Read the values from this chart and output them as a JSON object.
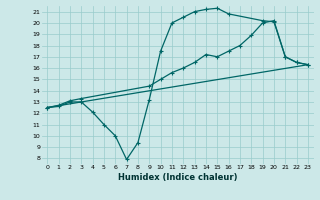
{
  "xlabel": "Humidex (Indice chaleur)",
  "bg_color": "#cce8e8",
  "line_color": "#006666",
  "xlim": [
    -0.5,
    23.5
  ],
  "ylim": [
    7.5,
    21.5
  ],
  "xticks": [
    0,
    1,
    2,
    3,
    4,
    5,
    6,
    7,
    8,
    9,
    10,
    11,
    12,
    13,
    14,
    15,
    16,
    17,
    18,
    19,
    20,
    21,
    22,
    23
  ],
  "yticks": [
    8,
    9,
    10,
    11,
    12,
    13,
    14,
    15,
    16,
    17,
    18,
    19,
    20,
    21
  ],
  "line1_x": [
    0,
    1,
    2,
    3,
    4,
    5,
    6,
    7,
    8,
    9,
    10,
    11,
    12,
    13,
    14,
    15,
    16,
    19,
    20,
    21,
    22,
    23
  ],
  "line1_y": [
    12.5,
    12.6,
    13.0,
    13.0,
    12.1,
    11.0,
    10.0,
    7.9,
    9.4,
    13.2,
    17.5,
    20.0,
    20.5,
    21.0,
    21.2,
    21.3,
    20.8,
    20.2,
    20.1,
    17.0,
    16.5,
    16.3
  ],
  "line2_x": [
    0,
    1,
    2,
    3,
    9,
    10,
    11,
    12,
    13,
    14,
    15,
    16,
    17,
    18,
    19,
    20,
    21,
    22,
    23
  ],
  "line2_y": [
    12.5,
    12.7,
    13.1,
    13.3,
    14.4,
    15.0,
    15.6,
    16.0,
    16.5,
    17.2,
    17.0,
    17.5,
    18.0,
    18.9,
    20.0,
    20.2,
    17.0,
    16.5,
    16.3
  ],
  "line3_x": [
    0,
    23
  ],
  "line3_y": [
    12.5,
    16.3
  ]
}
